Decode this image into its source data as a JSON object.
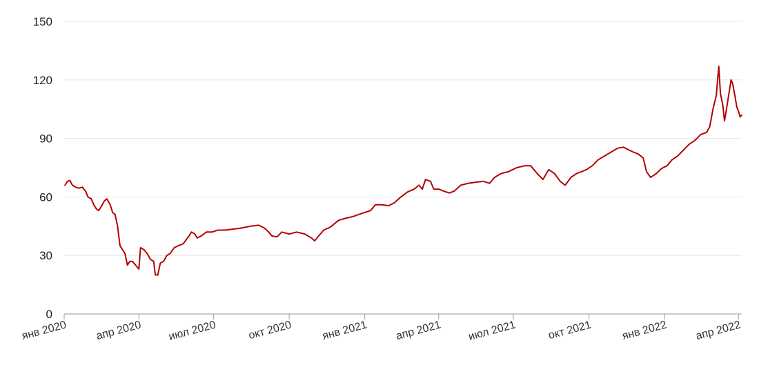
{
  "chart_data": {
    "type": "line",
    "title": "",
    "xlabel": "",
    "ylabel": "",
    "ylim": [
      0,
      150
    ],
    "yticks": [
      0,
      30,
      60,
      90,
      120,
      150
    ],
    "xlim": [
      "2020-01-01",
      "2022-04-05"
    ],
    "xticks": [
      {
        "date": "2020-01-01",
        "label": "янв 2020"
      },
      {
        "date": "2020-04-01",
        "label": "апр 2020"
      },
      {
        "date": "2020-07-01",
        "label": "июл 2020"
      },
      {
        "date": "2020-10-01",
        "label": "окт 2020"
      },
      {
        "date": "2021-01-01",
        "label": "янв 2021"
      },
      {
        "date": "2021-04-01",
        "label": "апр 2021"
      },
      {
        "date": "2021-07-01",
        "label": "июл 2021"
      },
      {
        "date": "2021-10-01",
        "label": "окт 2021"
      },
      {
        "date": "2022-01-01",
        "label": "янв 2022"
      },
      {
        "date": "2022-04-01",
        "label": "апр 2022"
      }
    ],
    "grid": true,
    "legend": "none",
    "series": [
      {
        "color": "#b30000",
        "points": [
          [
            "2020-01-02",
            66
          ],
          [
            "2020-01-05",
            68
          ],
          [
            "2020-01-08",
            68.5
          ],
          [
            "2020-01-11",
            66
          ],
          [
            "2020-01-15",
            65
          ],
          [
            "2020-01-19",
            64.5
          ],
          [
            "2020-01-23",
            65
          ],
          [
            "2020-01-27",
            63
          ],
          [
            "2020-01-30",
            60
          ],
          [
            "2020-02-03",
            59
          ],
          [
            "2020-02-06",
            56
          ],
          [
            "2020-02-09",
            54
          ],
          [
            "2020-02-12",
            53
          ],
          [
            "2020-02-15",
            55
          ],
          [
            "2020-02-19",
            58
          ],
          [
            "2020-02-22",
            59
          ],
          [
            "2020-02-26",
            56
          ],
          [
            "2020-02-29",
            52
          ],
          [
            "2020-03-03",
            51
          ],
          [
            "2020-03-06",
            45
          ],
          [
            "2020-03-09",
            35
          ],
          [
            "2020-03-12",
            33
          ],
          [
            "2020-03-15",
            31
          ],
          [
            "2020-03-18",
            25
          ],
          [
            "2020-03-21",
            27
          ],
          [
            "2020-03-24",
            27
          ],
          [
            "2020-03-28",
            25
          ],
          [
            "2020-04-01",
            23
          ],
          [
            "2020-04-03",
            34
          ],
          [
            "2020-04-07",
            33
          ],
          [
            "2020-04-11",
            31
          ],
          [
            "2020-04-15",
            28
          ],
          [
            "2020-04-19",
            27
          ],
          [
            "2020-04-21",
            20
          ],
          [
            "2020-04-24",
            20
          ],
          [
            "2020-04-27",
            26
          ],
          [
            "2020-05-01",
            27
          ],
          [
            "2020-05-05",
            30
          ],
          [
            "2020-05-09",
            31
          ],
          [
            "2020-05-14",
            34
          ],
          [
            "2020-05-19",
            35
          ],
          [
            "2020-05-25",
            36
          ],
          [
            "2020-06-01",
            40
          ],
          [
            "2020-06-04",
            42
          ],
          [
            "2020-06-08",
            41
          ],
          [
            "2020-06-11",
            39
          ],
          [
            "2020-06-16",
            40
          ],
          [
            "2020-06-22",
            42
          ],
          [
            "2020-06-29",
            42
          ],
          [
            "2020-07-06",
            43
          ],
          [
            "2020-07-15",
            43
          ],
          [
            "2020-07-25",
            43.5
          ],
          [
            "2020-08-03",
            44
          ],
          [
            "2020-08-15",
            45
          ],
          [
            "2020-08-25",
            45.5
          ],
          [
            "2020-09-01",
            44
          ],
          [
            "2020-09-06",
            42
          ],
          [
            "2020-09-10",
            40
          ],
          [
            "2020-09-16",
            39.5
          ],
          [
            "2020-09-22",
            42
          ],
          [
            "2020-10-01",
            41
          ],
          [
            "2020-10-10",
            42
          ],
          [
            "2020-10-20",
            41
          ],
          [
            "2020-10-28",
            39
          ],
          [
            "2020-11-01",
            37.5
          ],
          [
            "2020-11-06",
            40
          ],
          [
            "2020-11-12",
            43
          ],
          [
            "2020-11-20",
            44.5
          ],
          [
            "2020-11-30",
            48
          ],
          [
            "2020-12-08",
            49
          ],
          [
            "2020-12-18",
            50
          ],
          [
            "2020-12-28",
            51.5
          ],
          [
            "2021-01-08",
            53
          ],
          [
            "2021-01-14",
            56
          ],
          [
            "2021-01-22",
            56
          ],
          [
            "2021-01-30",
            55.5
          ],
          [
            "2021-02-06",
            57
          ],
          [
            "2021-02-14",
            60
          ],
          [
            "2021-02-22",
            62.5
          ],
          [
            "2021-03-02",
            64
          ],
          [
            "2021-03-08",
            66
          ],
          [
            "2021-03-12",
            64
          ],
          [
            "2021-03-16",
            69
          ],
          [
            "2021-03-22",
            68
          ],
          [
            "2021-03-26",
            64
          ],
          [
            "2021-04-01",
            64
          ],
          [
            "2021-04-07",
            63
          ],
          [
            "2021-04-14",
            62
          ],
          [
            "2021-04-20",
            63
          ],
          [
            "2021-04-28",
            66
          ],
          [
            "2021-05-07",
            67
          ],
          [
            "2021-05-15",
            67.5
          ],
          [
            "2021-05-25",
            68
          ],
          [
            "2021-06-02",
            67
          ],
          [
            "2021-06-08",
            70
          ],
          [
            "2021-06-16",
            72
          ],
          [
            "2021-06-25",
            73
          ],
          [
            "2021-07-05",
            75
          ],
          [
            "2021-07-15",
            76
          ],
          [
            "2021-07-22",
            76
          ],
          [
            "2021-07-30",
            72
          ],
          [
            "2021-08-06",
            69
          ],
          [
            "2021-08-13",
            74
          ],
          [
            "2021-08-20",
            72
          ],
          [
            "2021-08-27",
            68
          ],
          [
            "2021-09-02",
            66
          ],
          [
            "2021-09-09",
            70
          ],
          [
            "2021-09-16",
            72
          ],
          [
            "2021-09-22",
            73
          ],
          [
            "2021-09-28",
            74
          ],
          [
            "2021-10-05",
            76
          ],
          [
            "2021-10-12",
            79
          ],
          [
            "2021-10-20",
            81
          ],
          [
            "2021-10-28",
            83
          ],
          [
            "2021-11-05",
            85
          ],
          [
            "2021-11-12",
            85.5
          ],
          [
            "2021-11-19",
            84
          ],
          [
            "2021-11-24",
            83
          ],
          [
            "2021-11-30",
            82
          ],
          [
            "2021-12-06",
            80
          ],
          [
            "2021-12-10",
            73
          ],
          [
            "2021-12-15",
            70
          ],
          [
            "2021-12-22",
            72
          ],
          [
            "2021-12-28",
            74.5
          ],
          [
            "2022-01-04",
            76
          ],
          [
            "2022-01-10",
            79
          ],
          [
            "2022-01-17",
            81
          ],
          [
            "2022-01-24",
            84
          ],
          [
            "2022-01-31",
            87
          ],
          [
            "2022-02-07",
            89
          ],
          [
            "2022-02-14",
            92
          ],
          [
            "2022-02-21",
            93
          ],
          [
            "2022-02-25",
            96
          ],
          [
            "2022-03-01",
            105
          ],
          [
            "2022-03-05",
            112
          ],
          [
            "2022-03-08",
            127
          ],
          [
            "2022-03-10",
            113
          ],
          [
            "2022-03-13",
            107
          ],
          [
            "2022-03-15",
            99
          ],
          [
            "2022-03-17",
            104
          ],
          [
            "2022-03-20",
            112
          ],
          [
            "2022-03-23",
            120
          ],
          [
            "2022-03-25",
            118
          ],
          [
            "2022-03-28",
            111
          ],
          [
            "2022-03-30",
            106
          ],
          [
            "2022-04-01",
            104
          ],
          [
            "2022-04-03",
            101
          ],
          [
            "2022-04-05",
            102
          ]
        ]
      }
    ]
  }
}
